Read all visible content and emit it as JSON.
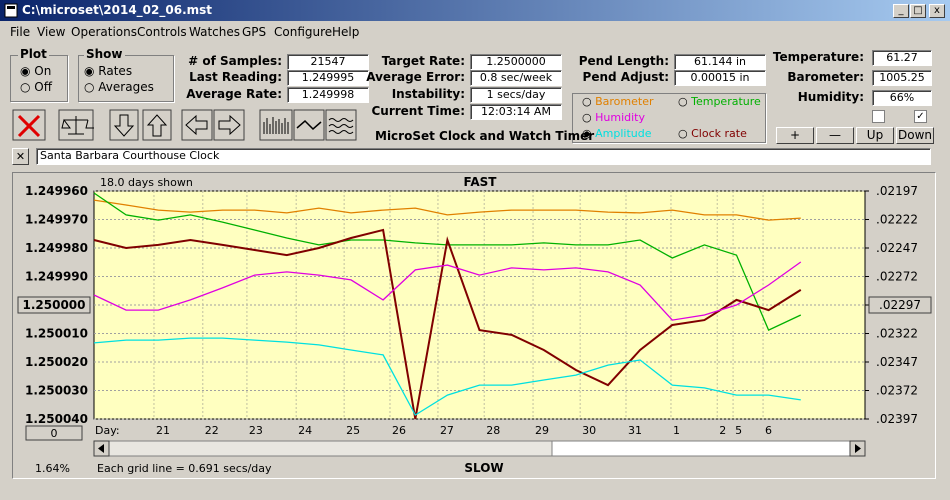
{
  "window": {
    "title": "C:\\microset\\2014_02_06.mst"
  },
  "menu": [
    "File",
    "View",
    "Operations",
    "Controls",
    "Watches",
    "GPS",
    "Configure",
    "Help"
  ],
  "plot_group": {
    "title": "Plot",
    "options": [
      "On",
      "Off"
    ]
  },
  "show_group": {
    "title": "Show",
    "options": [
      "Rates",
      "Averages"
    ]
  },
  "fields": [
    {
      "label": "# of Samples:",
      "value": "21547"
    },
    {
      "label": "Last Reading:",
      "value": "1.249995"
    },
    {
      "label": "Average Rate:",
      "value": "1.249998"
    },
    {
      "label": "Target Rate:",
      "value": "1.2500000"
    },
    {
      "label": "Average Error:",
      "value": "0.8 sec/week"
    },
    {
      "label": "Instability:",
      "value": "1 secs/day"
    },
    {
      "label": "Current Time:",
      "value": "12:03:14 AM"
    },
    {
      "label": "Pend Length:",
      "value": "61.144 in"
    },
    {
      "label": "Pend Adjust:",
      "value": "0.00015 in"
    },
    {
      "label": "Temperature:",
      "value": "61.27"
    },
    {
      "label": "Barometer:",
      "value": "1005.25"
    },
    {
      "label": "Humidity:",
      "value": "66%"
    }
  ],
  "app_name": "MicroSet Clock and Watch Timer",
  "buttons": [
    "+",
    "—",
    "Up",
    "Down"
  ],
  "clock_name": "Santa Barbara Courthouse Clock",
  "chart_data": {
    "type": "line",
    "days_shown": "18.0 days shown",
    "top_label": "FAST",
    "bottom_label": "SLOW",
    "x_label": "Day:",
    "grid_note": "Each grid line = 0.691 secs/day",
    "status": "1.64%",
    "offset_button": "0",
    "grid": true,
    "xlim": [
      0,
      18
    ],
    "xticks": [
      {
        "value": 1.4,
        "label": "21"
      },
      {
        "value": 2.54,
        "label": "22"
      },
      {
        "value": 3.57,
        "label": "23"
      },
      {
        "value": 4.72,
        "label": "24"
      },
      {
        "value": 5.84,
        "label": "25"
      },
      {
        "value": 6.91,
        "label": "26"
      },
      {
        "value": 8.03,
        "label": "27"
      },
      {
        "value": 9.11,
        "label": "28"
      },
      {
        "value": 10.25,
        "label": "29"
      },
      {
        "value": 11.35,
        "label": "30"
      },
      {
        "value": 12.42,
        "label": "31"
      },
      {
        "value": 13.47,
        "label": "1"
      },
      {
        "value": 14.55,
        "label": "2"
      },
      {
        "value": 14.92,
        "label": "5"
      },
      {
        "value": 15.62,
        "label": "6"
      }
    ],
    "ylim": [
      1.24996,
      1.25004
    ],
    "yticks": [
      {
        "value": 1.24996,
        "label": "1.249960"
      },
      {
        "value": 1.24997,
        "label": "1.249970"
      },
      {
        "value": 1.24998,
        "label": "1.249980"
      },
      {
        "value": 1.24999,
        "label": "1.249990"
      },
      {
        "value": 1.25,
        "label": "1.250000"
      },
      {
        "value": 1.25001,
        "label": "1.250010"
      },
      {
        "value": 1.25002,
        "label": "1.250020"
      },
      {
        "value": 1.25003,
        "label": "1.250030"
      },
      {
        "value": 1.25004,
        "label": "1.250040"
      }
    ],
    "y2lim": [
      0.02197,
      0.02397
    ],
    "y2ticks": [
      {
        "value": 0.02197,
        "label": ".02197"
      },
      {
        "value": 0.02222,
        "label": ".02222"
      },
      {
        "value": 0.02247,
        "label": ".02247"
      },
      {
        "value": 0.02272,
        "label": ".02272"
      },
      {
        "value": 0.02297,
        "label": ".02297"
      },
      {
        "value": 0.02322,
        "label": ".02322"
      },
      {
        "value": 0.02347,
        "label": ".02347"
      },
      {
        "value": 0.02372,
        "label": ".02372"
      },
      {
        "value": 0.02397,
        "label": ".02397"
      }
    ],
    "x": [
      0,
      0.75,
      1.5,
      2.25,
      3,
      3.75,
      4.5,
      5.25,
      6,
      6.75,
      7.5,
      8.25,
      9,
      9.75,
      10.5,
      11.25,
      12,
      12.75,
      13.5,
      14.25,
      15,
      15.75,
      16.5
    ],
    "series": [
      {
        "name": "Barometer",
        "color": "#e08000",
        "values": [
          1.2499632,
          1.2499649,
          1.2499667,
          1.2499674,
          1.2499667,
          1.2499667,
          1.2499677,
          1.249966,
          1.2499677,
          1.2499667,
          1.249966,
          1.2499684,
          1.2499674,
          1.2499667,
          1.2499667,
          1.2499667,
          1.2499674,
          1.2499677,
          1.2499667,
          1.2499684,
          1.2499684,
          1.2499702,
          1.2499695
        ]
      },
      {
        "name": "Temperature",
        "color": "#00b000",
        "values": [
          1.2499607,
          1.2499684,
          1.2499702,
          1.2499684,
          1.2499709,
          1.2499737,
          1.2499765,
          1.2499789,
          1.2499772,
          1.2499772,
          1.2499782,
          1.2499789,
          1.2499789,
          1.2499789,
          1.2499782,
          1.2499789,
          1.2499789,
          1.2499772,
          1.2499835,
          1.2499789,
          1.2499825,
          1.2500088,
          1.2500035
        ]
      },
      {
        "name": "Clock rate",
        "color": "#800000",
        "values": [
          1.2499772,
          1.24998,
          1.2499789,
          1.2499772,
          1.2499789,
          1.2499807,
          1.2499825,
          1.24998,
          1.2499765,
          1.2499737,
          1.25004,
          1.2499772,
          1.2500088,
          1.2500105,
          1.2500158,
          1.2500228,
          1.2500281,
          1.2500158,
          1.250007,
          1.2500053,
          1.2499982,
          1.2500018,
          1.2499947
        ]
      },
      {
        "name": "Humidity",
        "color": "#e000e0",
        "values": [
          1.2499965,
          1.2500018,
          1.2500018,
          1.2499982,
          1.249994,
          1.2499895,
          1.2499884,
          1.2499895,
          1.2499912,
          1.2499982,
          1.2499877,
          1.249986,
          1.2499895,
          1.249987,
          1.2499877,
          1.249987,
          1.2499884,
          1.249993,
          1.2500053,
          1.2500035,
          1.25,
          1.249993,
          1.2499849
        ]
      },
      {
        "name": "Amplitude",
        "color": "#00e0e0",
        "values": [
          1.2500133,
          1.2500123,
          1.2500123,
          1.2500116,
          1.2500116,
          1.2500123,
          1.250013,
          1.250014,
          1.2500158,
          1.2500175,
          1.2500386,
          1.2500316,
          1.2500281,
          1.2500281,
          1.2500263,
          1.2500246,
          1.2500211,
          1.2500193,
          1.2500281,
          1.2500291,
          1.2500316,
          1.2500316,
          1.2500333
        ]
      }
    ]
  }
}
